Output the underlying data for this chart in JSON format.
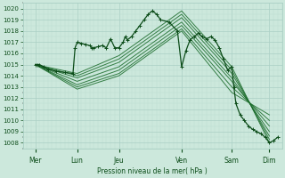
{
  "xlabel": "Pression niveau de la mer( hPa )",
  "ylim": [
    1007.5,
    1020.5
  ],
  "xlim": [
    0,
    6.2
  ],
  "yticks": [
    1008,
    1009,
    1010,
    1011,
    1012,
    1013,
    1014,
    1015,
    1016,
    1017,
    1018,
    1019,
    1020
  ],
  "day_labels": [
    "Mer",
    "Lun",
    "Jeu",
    "Ven",
    "Sam",
    "Dim"
  ],
  "day_tick_x": [
    0.3,
    1.3,
    2.3,
    3.8,
    5.0,
    5.9
  ],
  "bg_color": "#cce8dc",
  "grid_major_color": "#aacfc4",
  "grid_minor_color": "#bbddd2",
  "line_color": "#1a6b2a",
  "line_color_dark": "#0d4d1a",
  "marker": "+",
  "curves": [
    [
      0.3,
      1015.0,
      1.3,
      1014.2,
      2.3,
      1015.8,
      3.8,
      1019.8,
      5.0,
      1014.8,
      5.9,
      1008.0
    ],
    [
      0.3,
      1015.0,
      1.3,
      1014.0,
      2.3,
      1015.5,
      3.8,
      1019.5,
      5.0,
      1014.5,
      5.9,
      1008.3
    ],
    [
      0.3,
      1015.0,
      1.3,
      1013.8,
      2.3,
      1015.2,
      3.8,
      1019.2,
      5.0,
      1014.2,
      5.9,
      1008.6
    ],
    [
      0.3,
      1015.0,
      1.3,
      1013.5,
      2.3,
      1014.8,
      3.8,
      1018.8,
      5.0,
      1013.8,
      5.9,
      1009.0
    ],
    [
      0.3,
      1015.0,
      1.3,
      1013.2,
      2.3,
      1014.5,
      3.8,
      1018.5,
      5.0,
      1013.5,
      5.9,
      1009.5
    ],
    [
      0.3,
      1015.0,
      1.3,
      1013.0,
      2.3,
      1014.2,
      3.8,
      1018.2,
      5.0,
      1013.0,
      5.9,
      1010.0
    ],
    [
      0.3,
      1015.0,
      1.3,
      1012.8,
      2.3,
      1014.0,
      3.8,
      1018.0,
      5.0,
      1012.5,
      5.9,
      1010.5
    ]
  ],
  "main_x": [
    0.3,
    0.35,
    0.4,
    0.5,
    0.6,
    0.8,
    1.0,
    1.2,
    1.25,
    1.3,
    1.4,
    1.5,
    1.6,
    1.65,
    1.7,
    1.8,
    1.9,
    2.0,
    2.1,
    2.2,
    2.3,
    2.4,
    2.45,
    2.5,
    2.6,
    2.7,
    2.8,
    2.9,
    3.0,
    3.1,
    3.2,
    3.3,
    3.5,
    3.7,
    3.8,
    3.9,
    4.0,
    4.1,
    4.2,
    4.3,
    4.4,
    4.5,
    4.6,
    4.7,
    4.8,
    4.9,
    5.0,
    5.05,
    5.1,
    5.2,
    5.3,
    5.4,
    5.5,
    5.6,
    5.7,
    5.8,
    5.9,
    6.0,
    6.1
  ],
  "main_y": [
    1015.0,
    1015.0,
    1015.0,
    1014.8,
    1014.6,
    1014.4,
    1014.3,
    1014.2,
    1016.5,
    1017.0,
    1016.9,
    1016.8,
    1016.7,
    1016.5,
    1016.5,
    1016.6,
    1016.7,
    1016.5,
    1017.3,
    1016.5,
    1016.5,
    1017.0,
    1017.5,
    1017.2,
    1017.5,
    1018.0,
    1018.5,
    1019.0,
    1019.5,
    1019.8,
    1019.5,
    1019.0,
    1018.8,
    1018.0,
    1014.8,
    1016.2,
    1017.2,
    1017.5,
    1017.8,
    1017.5,
    1017.3,
    1017.5,
    1017.2,
    1016.5,
    1015.5,
    1014.5,
    1014.8,
    1013.0,
    1011.5,
    1010.5,
    1010.0,
    1009.5,
    1009.2,
    1009.0,
    1008.8,
    1008.5,
    1008.0,
    1008.2,
    1008.5
  ]
}
